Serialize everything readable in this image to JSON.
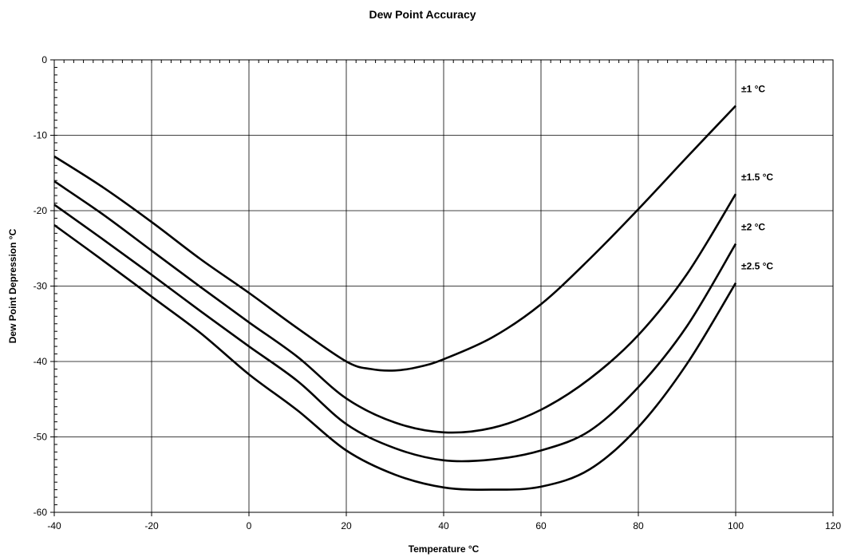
{
  "chart_data": {
    "type": "line",
    "title": "Dew Point Accuracy",
    "xlabel": "Temperature °C",
    "ylabel": "Dew Point Depression °C",
    "xlim": [
      -40,
      120
    ],
    "ylim": [
      -60,
      0
    ],
    "xticks": [
      -40,
      -20,
      0,
      20,
      40,
      60,
      80,
      100,
      120
    ],
    "yticks": [
      0,
      -10,
      -20,
      -30,
      -40,
      -50,
      -60
    ],
    "grid": true,
    "legend": "none",
    "line_color": "#000000",
    "series": [
      {
        "name": "±1 °C",
        "x": [
          -40,
          -30,
          -20,
          -10,
          0,
          10,
          20,
          25,
          30,
          35,
          40,
          50,
          60,
          70,
          80,
          90,
          100
        ],
        "y": [
          -12.8,
          -16.9,
          -21.5,
          -26.4,
          -30.9,
          -35.6,
          -40.0,
          -41.0,
          -41.2,
          -40.7,
          -39.7,
          -36.8,
          -32.4,
          -26.4,
          -19.8,
          -12.9,
          -6.1
        ]
      },
      {
        "name": "±1.5 °C",
        "x": [
          -40,
          -30,
          -20,
          -10,
          0,
          10,
          20,
          30,
          40,
          50,
          60,
          70,
          80,
          90,
          100
        ],
        "y": [
          -16.1,
          -20.5,
          -25.3,
          -30.1,
          -34.8,
          -39.4,
          -44.9,
          -48.1,
          -49.4,
          -48.8,
          -46.4,
          -42.3,
          -36.5,
          -28.4,
          -17.8
        ]
      },
      {
        "name": "±2 °C",
        "x": [
          -40,
          -30,
          -20,
          -10,
          0,
          10,
          20,
          30,
          40,
          50,
          60,
          70,
          80,
          90,
          100
        ],
        "y": [
          -19.2,
          -23.8,
          -28.5,
          -33.3,
          -38.0,
          -42.6,
          -48.3,
          -51.5,
          -53.1,
          -53.0,
          -51.8,
          -49.2,
          -43.4,
          -35.3,
          -24.4
        ]
      },
      {
        "name": "±2.5 °C",
        "x": [
          -40,
          -30,
          -20,
          -10,
          0,
          10,
          20,
          30,
          40,
          50,
          60,
          70,
          80,
          90,
          100
        ],
        "y": [
          -21.9,
          -26.6,
          -31.4,
          -36.2,
          -41.7,
          -46.5,
          -51.8,
          -55.0,
          -56.7,
          -57.0,
          -56.6,
          -54.3,
          -48.7,
          -40.3,
          -29.6
        ]
      }
    ]
  }
}
